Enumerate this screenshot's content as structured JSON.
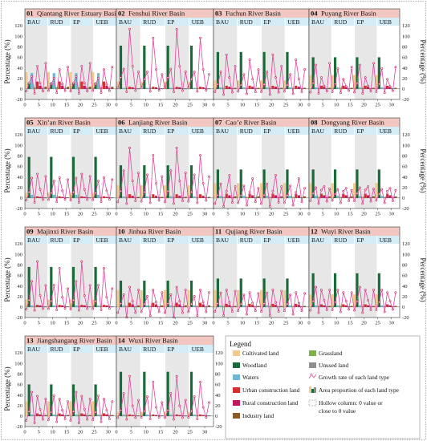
{
  "colors": {
    "title_bg": "#f3c7c1",
    "scenario_bg": "#d4ecf6",
    "shade": "#e7e7e7",
    "line": "#e0459b",
    "marker": "#c2185b",
    "zero_line": "#555555"
  },
  "legend": {
    "title": "Legend",
    "items": [
      {
        "label": "Cultivated land",
        "color": "#f2c98e",
        "kind": "box"
      },
      {
        "label": "Grassland",
        "color": "#7cb342",
        "kind": "box"
      },
      {
        "label": "Woodland",
        "color": "#1b6b3a",
        "kind": "box"
      },
      {
        "label": "Unused land",
        "color": "#8e8e8e",
        "kind": "box"
      },
      {
        "label": "Waters",
        "color": "#6fb7d3",
        "kind": "box"
      },
      {
        "label": "Growth rate of each land type",
        "color": "#e0459b",
        "kind": "line"
      },
      {
        "label": "Urban construction land",
        "color": "#d32f2f",
        "kind": "box"
      },
      {
        "label": "Area proportion of each land type",
        "color": "#1b6b3a",
        "kind": "barsicon"
      },
      {
        "label": "Rural construction land",
        "color": "#c2185b",
        "kind": "box"
      },
      {
        "label": "Hollow column: 0 value or",
        "label2": "close to 0 value",
        "color": "#888888",
        "kind": "hollow"
      },
      {
        "label": "Industry land",
        "color": "#8b5a2b",
        "kind": "box"
      }
    ]
  },
  "chart_data": {
    "type": "bar",
    "land_types": [
      "Cultivated land",
      "Woodland",
      "Waters",
      "Grassland",
      "Urban construction land",
      "Rural construction land",
      "Unused land",
      "Industry land"
    ],
    "land_colors": [
      "#f2c98e",
      "#1b6b3a",
      "#6fb7d3",
      "#7cb342",
      "#d32f2f",
      "#c2185b",
      "#8e8e8e",
      "#8b5a2b"
    ],
    "scenarios": [
      "BAU",
      "RUD",
      "EP",
      "UEB"
    ],
    "x_ticks": [
      0,
      5,
      10,
      15,
      20,
      25,
      30
    ],
    "y_ticks": [
      -20,
      0,
      20,
      40,
      60,
      80,
      100,
      120
    ],
    "ylim": [
      -20,
      120
    ],
    "ylabel": "Percentage (%)",
    "basins": [
      {
        "id": "01",
        "name": "Qiantang River Estuary Basin",
        "area": [
          32,
          12,
          30,
          3,
          14,
          6,
          2,
          4
        ],
        "growth": [
          -4,
          10,
          22,
          -8,
          40,
          10,
          -4,
          45
        ]
      },
      {
        "id": "02",
        "name": "Fenshui River Basin",
        "area": [
          14,
          82,
          2,
          2,
          4,
          3,
          1,
          1
        ],
        "growth": [
          2,
          20,
          35,
          -5,
          105,
          40,
          -3,
          30
        ]
      },
      {
        "id": "03",
        "name": "Fuchun River Basin",
        "area": [
          16,
          70,
          3,
          2,
          6,
          4,
          1,
          2
        ],
        "growth": [
          -5,
          8,
          30,
          -10,
          60,
          20,
          -6,
          40
        ]
      },
      {
        "id": "04",
        "name": "Puyang River Basin",
        "area": [
          26,
          60,
          3,
          2,
          6,
          4,
          1,
          2
        ],
        "growth": [
          -6,
          10,
          42,
          -8,
          20,
          5,
          -4,
          45
        ]
      },
      {
        "id": "05",
        "name": "Xin’an River Basin",
        "area": [
          10,
          78,
          6,
          2,
          3,
          2,
          1,
          1
        ],
        "growth": [
          -4,
          10,
          35,
          -8,
          42,
          15,
          -3,
          38
        ]
      },
      {
        "id": "06",
        "name": "Lanjiang River Basin",
        "area": [
          24,
          62,
          3,
          2,
          7,
          4,
          1,
          2
        ],
        "growth": [
          -7,
          12,
          48,
          -10,
          88,
          30,
          -5,
          44
        ]
      },
      {
        "id": "07",
        "name": "Cao’e River Basin",
        "area": [
          28,
          54,
          4,
          2,
          8,
          5,
          1,
          3
        ],
        "growth": [
          -10,
          5,
          25,
          -15,
          12,
          40,
          -8,
          20
        ]
      },
      {
        "id": "08",
        "name": "Dongyang River Basin",
        "area": [
          28,
          54,
          4,
          2,
          8,
          5,
          1,
          3
        ],
        "growth": [
          -5,
          8,
          18,
          -10,
          14,
          20,
          -6,
          16
        ]
      },
      {
        "id": "09",
        "name": "Majinxi River Basin",
        "area": [
          14,
          76,
          3,
          2,
          4,
          3,
          1,
          1
        ],
        "growth": [
          -4,
          12,
          45,
          -6,
          80,
          20,
          -3,
          38
        ]
      },
      {
        "id": "10",
        "name": "Jinhua River Basin",
        "area": [
          32,
          50,
          3,
          2,
          8,
          5,
          1,
          3
        ],
        "growth": [
          -10,
          6,
          22,
          -18,
          35,
          10,
          -10,
          30
        ]
      },
      {
        "id": "11",
        "name": "Qujiang River Basin",
        "area": [
          32,
          54,
          3,
          2,
          6,
          4,
          1,
          2
        ],
        "growth": [
          -8,
          6,
          25,
          -15,
          30,
          8,
          -8,
          28
        ]
      },
      {
        "id": "12",
        "name": "Wuyi River Basin",
        "area": [
          24,
          64,
          3,
          2,
          5,
          3,
          1,
          2
        ],
        "growth": [
          -6,
          10,
          35,
          -10,
          30,
          12,
          -5,
          30
        ]
      },
      {
        "id": "13",
        "name": "Jiangshangang River Basin",
        "area": [
          28,
          60,
          3,
          2,
          5,
          3,
          1,
          2
        ],
        "growth": [
          -8,
          8,
          42,
          -12,
          35,
          12,
          -6,
          30
        ]
      },
      {
        "id": "14",
        "name": "Wuxi River Basin",
        "area": [
          8,
          84,
          3,
          2,
          3,
          2,
          1,
          1
        ],
        "growth": [
          -3,
          10,
          40,
          -6,
          70,
          18,
          -3,
          28
        ]
      }
    ]
  }
}
